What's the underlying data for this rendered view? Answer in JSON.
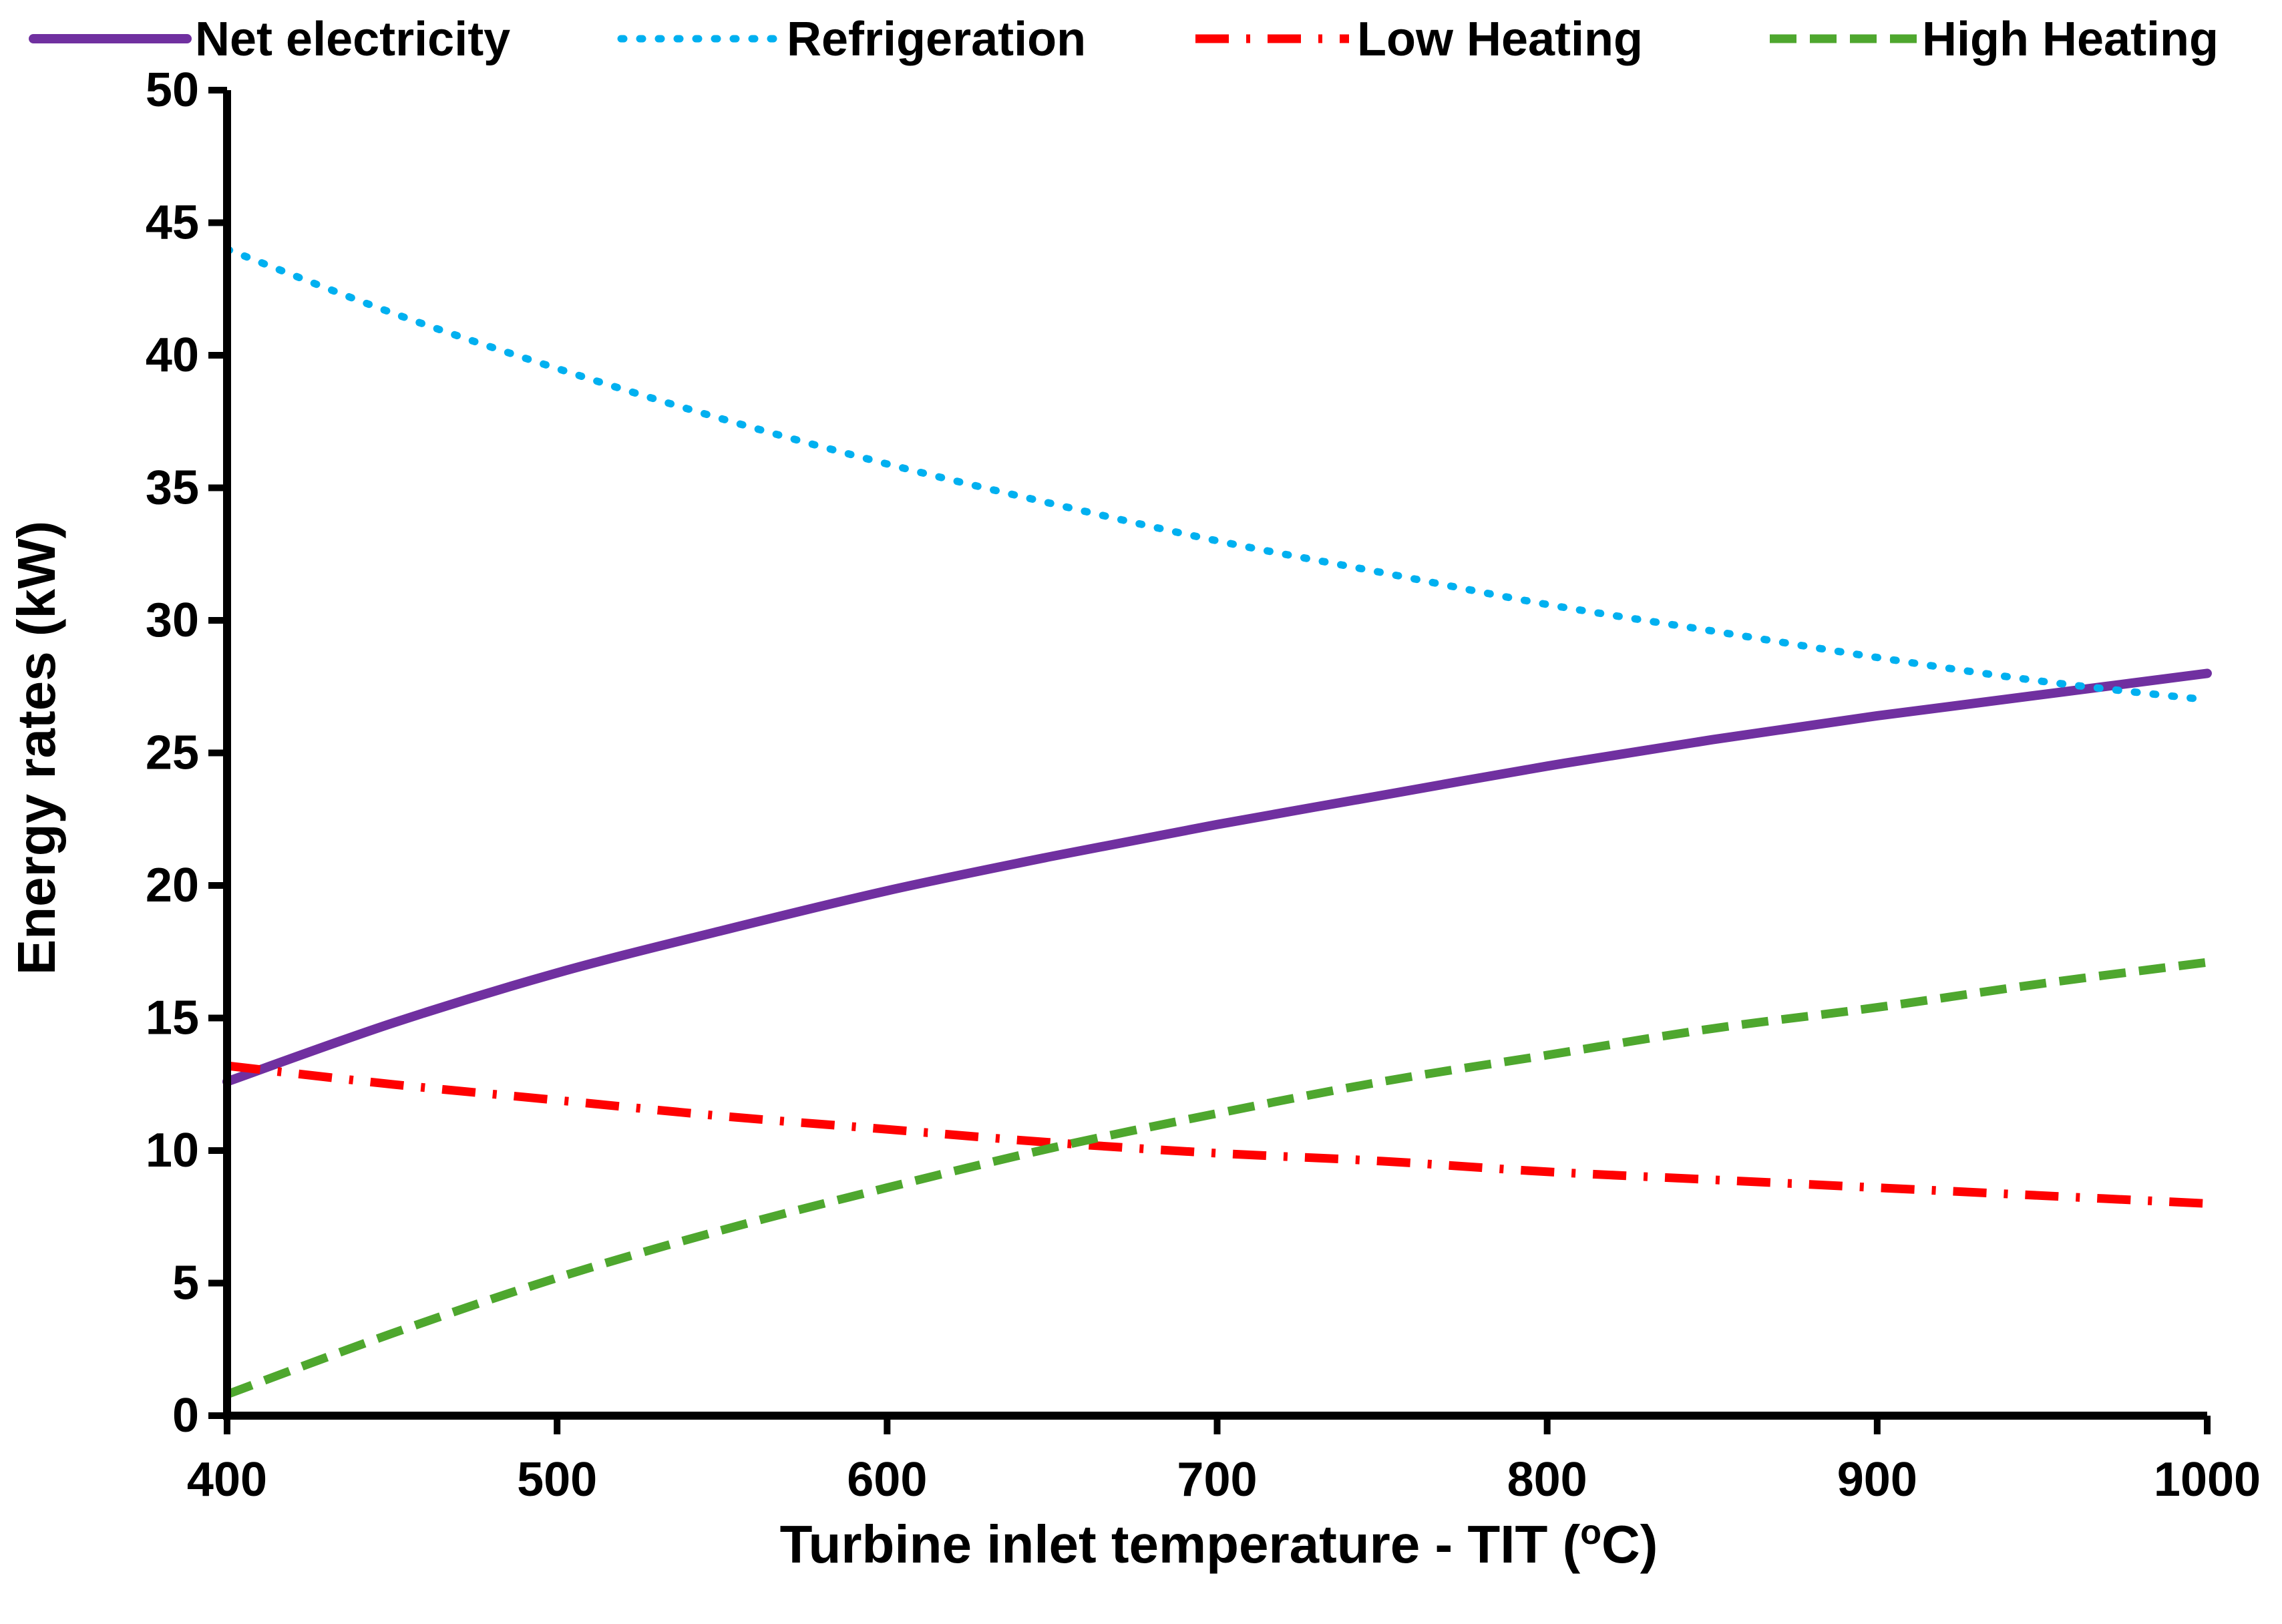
{
  "chart_data": {
    "type": "line",
    "title": "",
    "xlabel": "Turbine inlet temperature  - TIT (",
    "xlabel_sup": "o",
    "xlabel_end": "C)",
    "ylabel": "Energy rates (kW)",
    "xlim": [
      400,
      1000
    ],
    "ylim": [
      0,
      50
    ],
    "xticks": [
      400,
      500,
      600,
      700,
      800,
      900,
      1000
    ],
    "yticks": [
      0,
      5,
      10,
      15,
      20,
      25,
      30,
      35,
      40,
      45,
      50
    ],
    "grid": false,
    "legend_position": "top",
    "x": [
      400,
      450,
      500,
      550,
      600,
      650,
      700,
      750,
      800,
      850,
      900,
      950,
      1000
    ],
    "series": [
      {
        "name": "Net electricity",
        "style": "solid",
        "color": "#7030A0",
        "values": [
          12.6,
          14.8,
          16.7,
          18.3,
          19.8,
          21.1,
          22.3,
          23.4,
          24.5,
          25.5,
          26.4,
          27.2,
          28.0
        ]
      },
      {
        "name": "Refrigeration",
        "style": "dotted",
        "color": "#00B0F0",
        "values": [
          44.0,
          41.6,
          39.5,
          37.6,
          35.9,
          34.4,
          33.0,
          31.8,
          30.6,
          29.6,
          28.6,
          27.7,
          27.0
        ]
      },
      {
        "name": "Low Heating",
        "style": "dashdot",
        "color": "#FF0000",
        "values": [
          13.2,
          12.5,
          11.9,
          11.3,
          10.8,
          10.3,
          9.9,
          9.6,
          9.2,
          8.9,
          8.6,
          8.3,
          8.0
        ]
      },
      {
        "name": "High Heating",
        "style": "dashed",
        "color": "#4EA72E",
        "values": [
          0.8,
          3.1,
          5.2,
          7.0,
          8.6,
          10.1,
          11.4,
          12.6,
          13.6,
          14.6,
          15.4,
          16.3,
          17.1
        ]
      }
    ]
  }
}
